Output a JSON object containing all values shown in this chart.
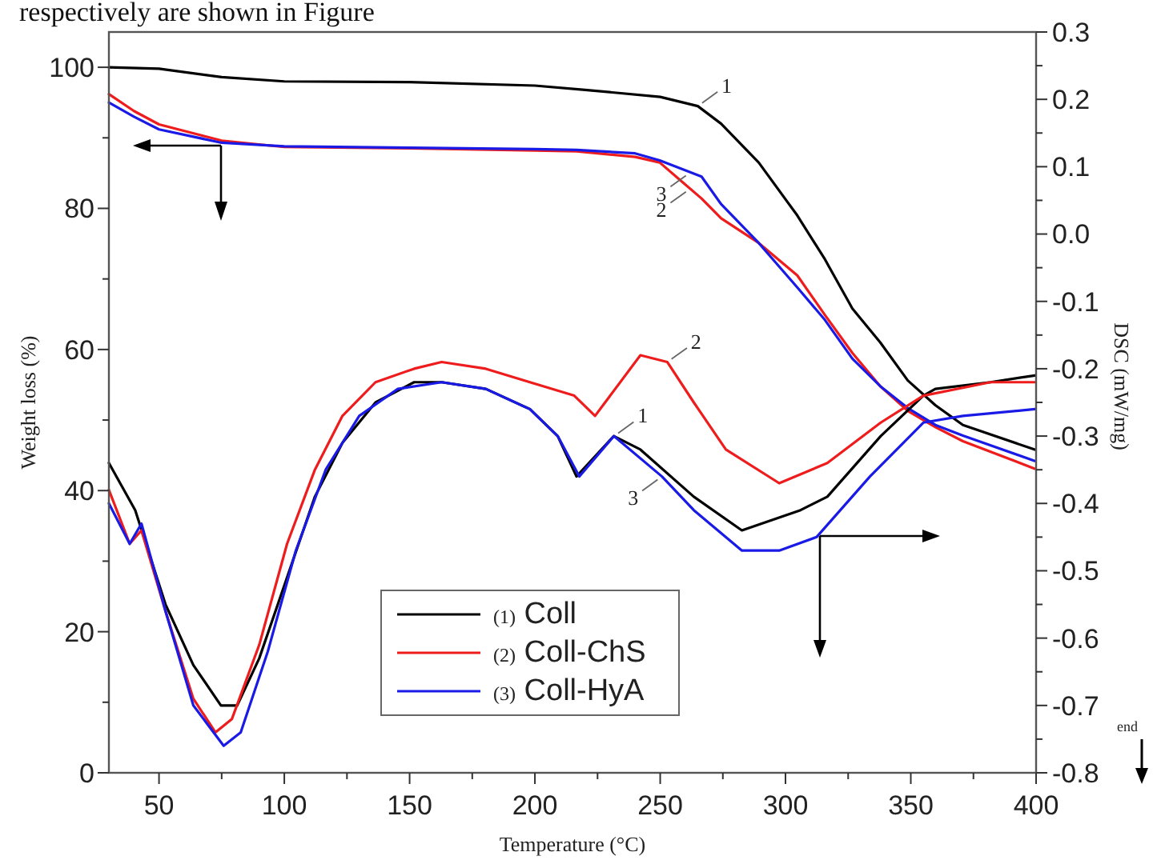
{
  "chart_data": {
    "type": "line",
    "xlabel": "Temperature (°C)",
    "ylabel": "Weight loss (%)",
    "y2label": "DSC (mW/mg)",
    "xlim": [
      30,
      400
    ],
    "xticks": [
      50,
      {
        "value": 75,
        "label": null
      },
      100,
      {
        "value": 125,
        "label": null
      },
      150,
      {
        "value": 175,
        "label": null
      },
      200,
      {
        "value": 225,
        "label": null
      },
      250,
      {
        "value": 275,
        "label": null
      },
      300,
      {
        "value": 325,
        "label": null
      },
      350,
      {
        "value": 375,
        "label": null
      },
      400
    ],
    "ylim": [
      0,
      105
    ],
    "yticks": [
      0,
      {
        "value": 10,
        "label": null
      },
      20,
      {
        "value": 30,
        "label": null
      },
      40,
      {
        "value": 50,
        "label": null
      },
      60,
      {
        "value": 70,
        "label": null
      },
      80,
      {
        "value": 90,
        "label": null
      },
      100
    ],
    "y2lim": [
      -0.8,
      0.3
    ],
    "y2ticks": [
      -0.8,
      {
        "value": -0.75,
        "label": null
      },
      -0.7,
      {
        "value": -0.65,
        "label": null
      },
      -0.6,
      {
        "value": -0.55,
        "label": null
      },
      -0.5,
      {
        "value": -0.45,
        "label": null
      },
      -0.4,
      {
        "value": -0.35,
        "label": null
      },
      -0.3,
      {
        "value": -0.25,
        "label": null
      },
      -0.2,
      {
        "value": -0.15,
        "label": null
      },
      -0.1,
      {
        "value": -0.05,
        "label": null
      },
      {
        "value": 0,
        "label": "0.0"
      },
      {
        "value": 0.05,
        "label": null
      },
      0.1,
      {
        "value": 0.15,
        "label": null
      },
      0.2,
      {
        "value": 0.25,
        "label": null
      },
      0.3
    ],
    "legend": "bottom",
    "line_style": "solid",
    "series": [
      {
        "name": "(1) Coll",
        "color": "#000000",
        "x": [
          30,
          50,
          75,
          100,
          150,
          200,
          220,
          250,
          265,
          274.3,
          289.3,
          304.7,
          315.7,
          326.7,
          337.8,
          348.8,
          359.8,
          370.8,
          399.5
        ],
        "values": [
          100,
          99.8,
          98.6,
          98.0,
          97.9,
          97.4,
          96.8,
          95.8,
          94.5,
          92.0,
          86.5,
          79.0,
          72.8,
          65.8,
          61.0,
          55.6,
          52.1,
          49.3,
          45.8
        ]
      },
      {
        "name": "(2) Coll-ChS",
        "color": "#ee1c1c",
        "x": [
          30,
          40,
          50,
          75,
          100,
          150,
          200,
          216.6,
          240,
          249.8,
          258,
          266.5,
          274.3,
          289.3,
          304.7,
          315.7,
          326.7,
          337.8,
          348.8,
          359.8,
          370.8,
          399.5
        ],
        "values": [
          96.2,
          93.8,
          91.9,
          89.6,
          88.7,
          88.5,
          88.2,
          88.1,
          87.3,
          86.5,
          84,
          81.4,
          78.6,
          75.1,
          70.5,
          64.9,
          59.5,
          54.8,
          51.3,
          49.0,
          47.0,
          43.1
        ]
      },
      {
        "name": "(3) Coll-HyA",
        "color": "#1a1ae6",
        "x": [
          30,
          40,
          50,
          75,
          100,
          150,
          200,
          216.6,
          240,
          249.8,
          266.5,
          274.3,
          289.3,
          304.7,
          315.7,
          326.7,
          337.8,
          348.8,
          359.8,
          370.8,
          399.5
        ],
        "values": [
          95.0,
          93.0,
          91.2,
          89.3,
          88.8,
          88.6,
          88.4,
          88.3,
          87.8,
          86.8,
          84.5,
          80.6,
          75.1,
          68.8,
          64.2,
          58.7,
          54.8,
          51.7,
          49.3,
          47.8,
          44.2
        ]
      },
      {
        "color": "#000000",
        "axis": "y2",
        "x": [
          30,
          40.5,
          52.6,
          63.7,
          74.7,
          81.2,
          90,
          101.1,
          112.2,
          123.2,
          136.4,
          151.8,
          162.8,
          180.4,
          198,
          209.1,
          216.6,
          231.5,
          242.1,
          263.4,
          282.6,
          306,
          316.7,
          338,
          355,
          359.8,
          381.8,
          399.5
        ],
        "values": [
          -0.34,
          -0.41,
          -0.55,
          -0.64,
          -0.7,
          -0.7,
          -0.63,
          -0.51,
          -0.39,
          -0.31,
          -0.25,
          -0.22,
          -0.22,
          -0.23,
          -0.26,
          -0.3,
          -0.36,
          -0.3,
          -0.32,
          -0.39,
          -0.44,
          -0.41,
          -0.39,
          -0.3,
          -0.24,
          -0.23,
          -0.22,
          -0.21
        ]
      },
      {
        "color": "#ee1c1c",
        "axis": "y2",
        "x": [
          30,
          38.3,
          43,
          52.6,
          63.7,
          72.5,
          79.1,
          90,
          101.1,
          112.2,
          123.2,
          136.4,
          151.8,
          162.8,
          180.4,
          198,
          215.7,
          224,
          242.1,
          252.8,
          263.4,
          276.2,
          297.5,
          316.7,
          338,
          355,
          381.8,
          399.5
        ],
        "values": [
          -0.38,
          -0.46,
          -0.44,
          -0.56,
          -0.69,
          -0.74,
          -0.72,
          -0.61,
          -0.46,
          -0.35,
          -0.27,
          -0.22,
          -0.2,
          -0.19,
          -0.2,
          -0.22,
          -0.24,
          -0.27,
          -0.18,
          -0.19,
          -0.25,
          -0.32,
          -0.37,
          -0.34,
          -0.28,
          -0.24,
          -0.22,
          -0.22
        ]
      },
      {
        "color": "#1a1ae6",
        "axis": "y2",
        "x": [
          30,
          38.3,
          43,
          52.6,
          63.7,
          75.8,
          82.6,
          93.4,
          104.6,
          116.5,
          129.9,
          145.3,
          162.8,
          180.4,
          198,
          209.1,
          217.7,
          231.5,
          250.7,
          263.4,
          282.6,
          297.5,
          312.4,
          333.7,
          355,
          370.8,
          399.5
        ],
        "values": [
          -0.4,
          -0.46,
          -0.43,
          -0.56,
          -0.7,
          -0.76,
          -0.74,
          -0.62,
          -0.47,
          -0.35,
          -0.27,
          -0.23,
          -0.22,
          -0.23,
          -0.26,
          -0.3,
          -0.36,
          -0.3,
          -0.36,
          -0.41,
          -0.47,
          -0.47,
          -0.45,
          -0.36,
          -0.28,
          -0.27,
          -0.26
        ]
      }
    ],
    "annotations": [
      "respectively are shown in Figure",
      "end",
      {
        "text": "1",
        "x": 265,
        "y": 94.5
      },
      {
        "text": "3",
        "x": 262,
        "y": 85.1
      },
      {
        "text": "2",
        "x": 262,
        "y": 82.8
      },
      {
        "text": "2",
        "x": 252.8,
        "y": 58.2
      },
      {
        "text": "1",
        "x": 231.5,
        "y": 47.7
      },
      {
        "text": "3",
        "x": 250.7,
        "y": 42.0
      }
    ]
  }
}
